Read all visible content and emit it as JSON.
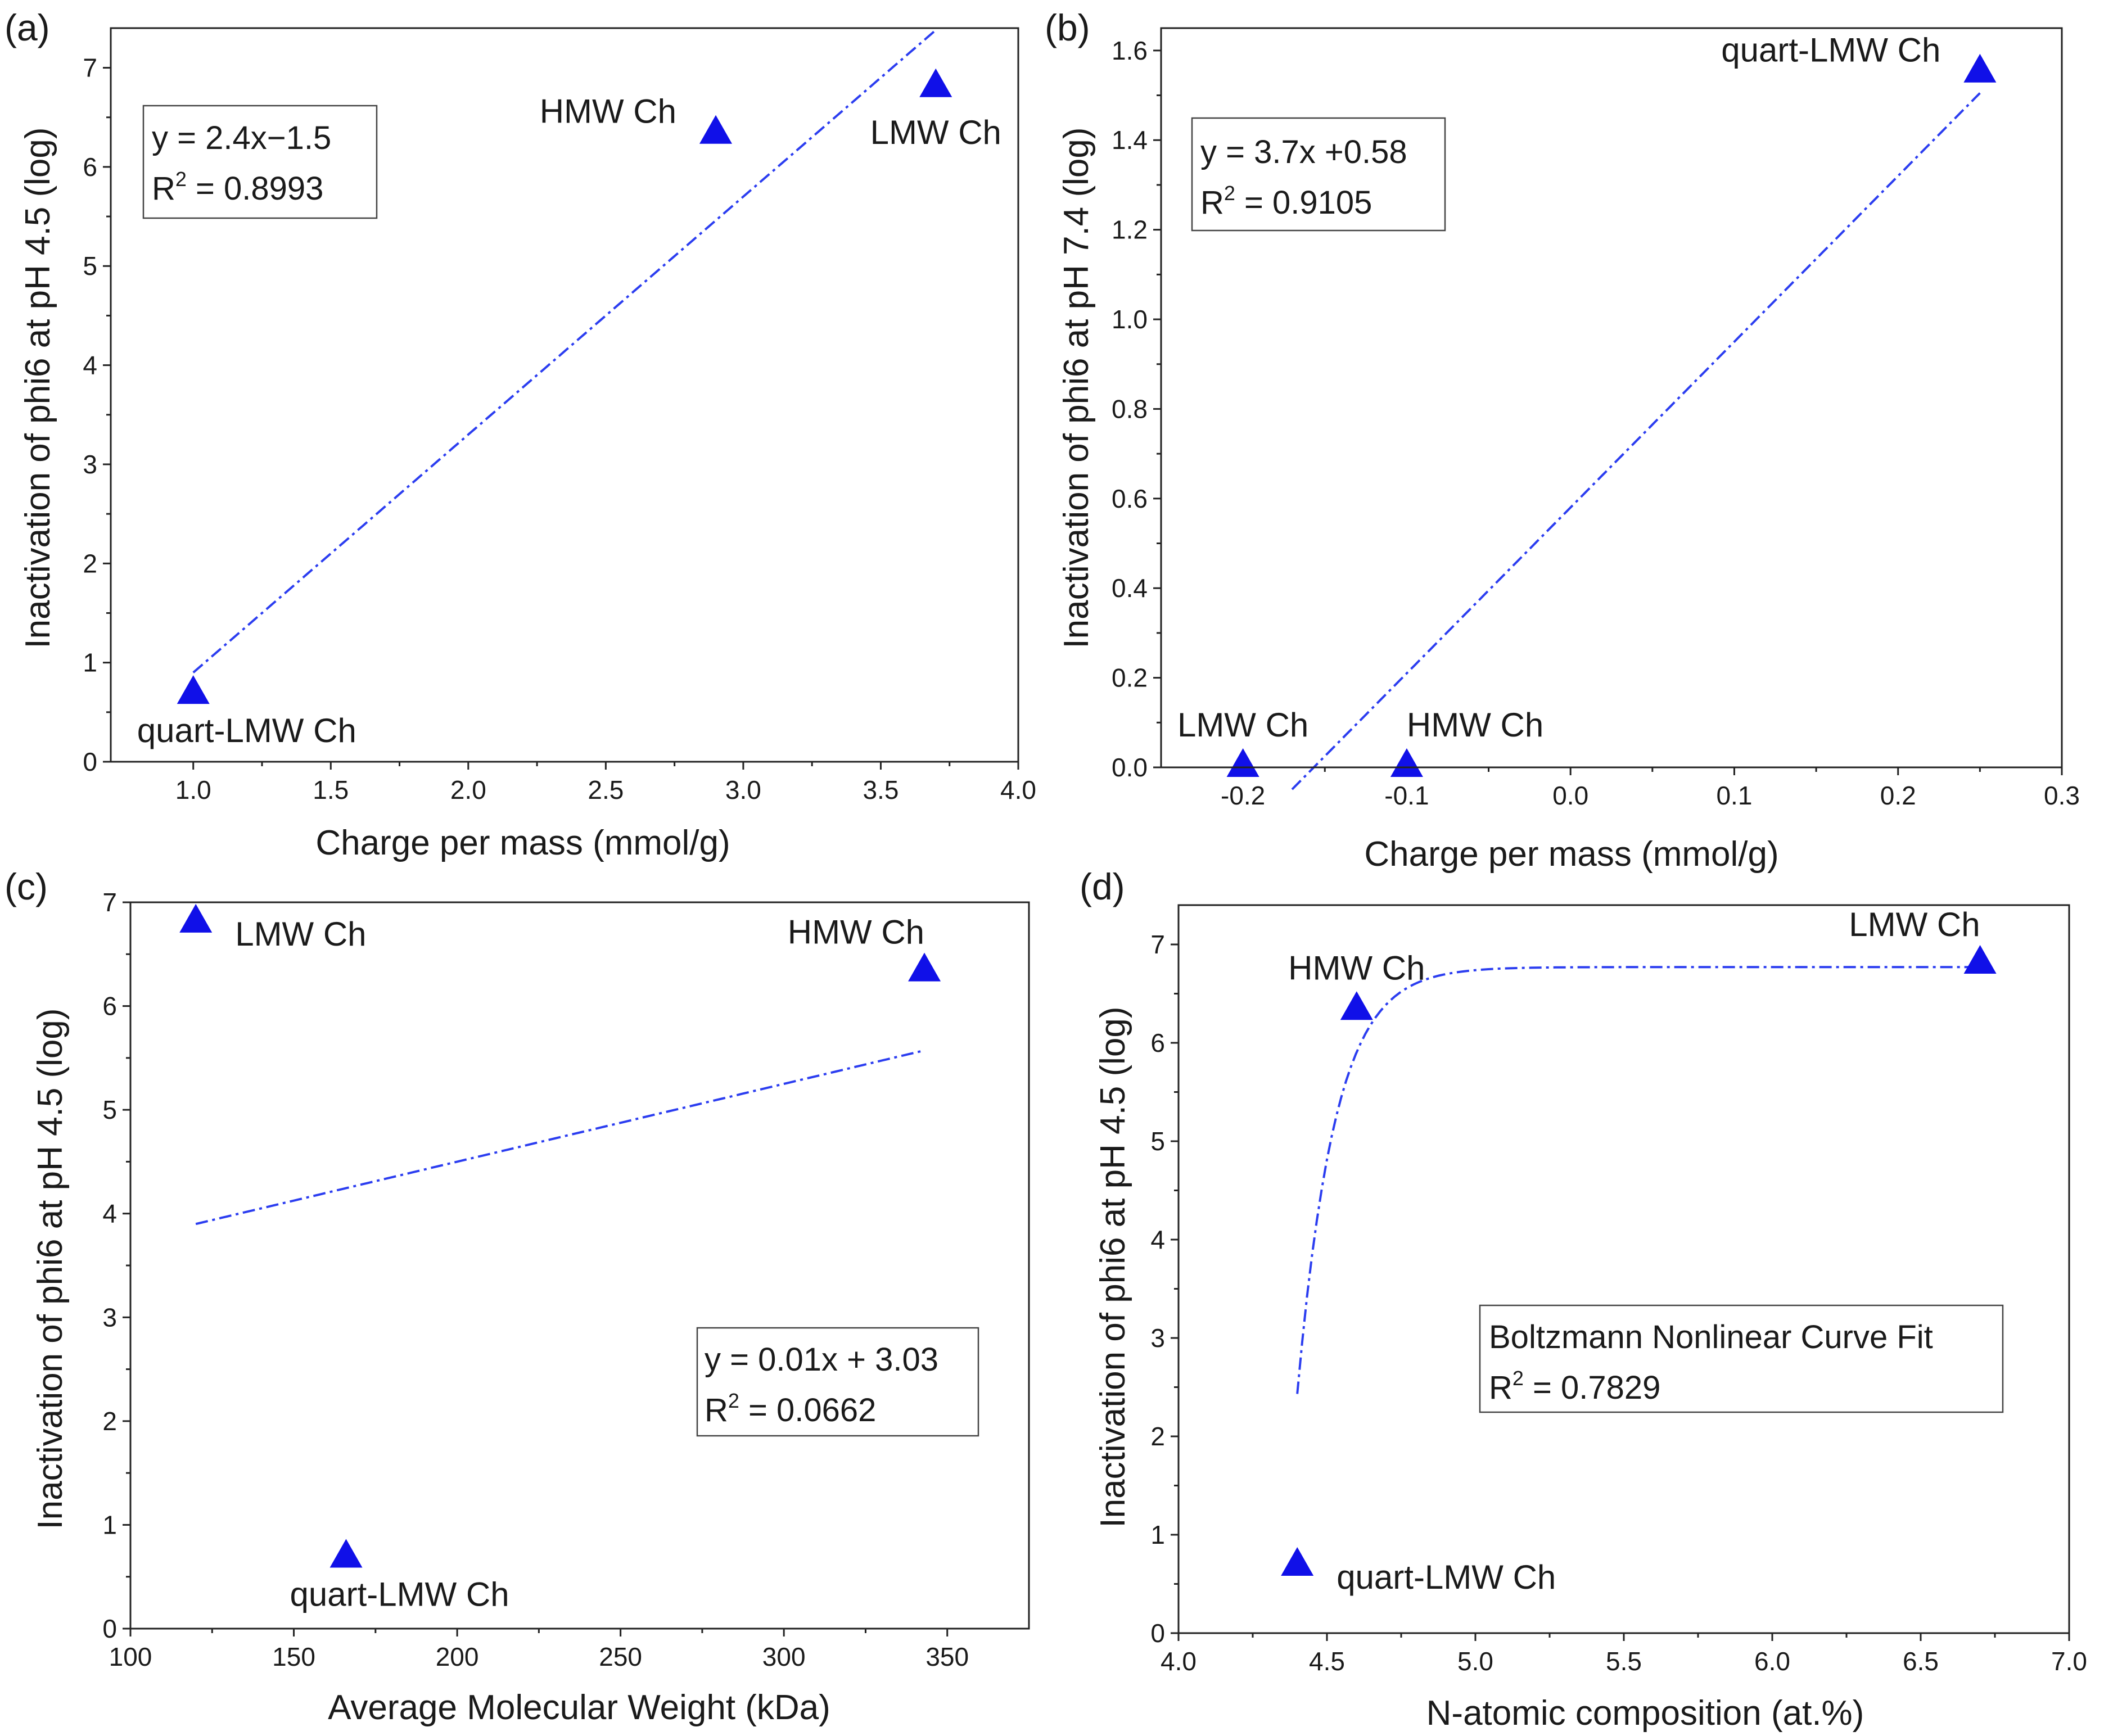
{
  "figure": {
    "colors": {
      "marker": "#1010e8",
      "fit_line": "#2b3df0",
      "axis": "#222222",
      "text": "#1a1a1a"
    }
  },
  "chart_data": [
    {
      "panel": "(a)",
      "type": "scatter",
      "xlabel": "Charge per mass (mmol/g)",
      "ylabel": "Inactivation of phi6 at pH 4.5 (log)",
      "xlim": [
        0.7,
        4.0
      ],
      "ylim": [
        0,
        7.4
      ],
      "xticks": [
        1.0,
        1.5,
        2.0,
        2.5,
        3.0,
        3.5,
        4.0
      ],
      "xtick_labels": [
        "1.0",
        "1.5",
        "2.0",
        "2.5",
        "3.0",
        "3.5",
        "4.0"
      ],
      "yticks": [
        0,
        1,
        2,
        3,
        4,
        5,
        6,
        7
      ],
      "ytick_labels": [
        "0",
        "1",
        "2",
        "3",
        "4",
        "5",
        "6",
        "7"
      ],
      "points": [
        {
          "label": "quart-LMW Ch",
          "x": 1.0,
          "y": 0.68,
          "label_pos": "below-right"
        },
        {
          "label": "HMW Ch",
          "x": 2.9,
          "y": 6.33,
          "label_pos": "left"
        },
        {
          "label": "LMW Ch",
          "x": 3.7,
          "y": 6.8,
          "label_pos": "below"
        }
      ],
      "fit": {
        "kind": "linear",
        "slope": 2.4,
        "intercept": -1.5,
        "x_range": [
          1.0,
          3.7
        ]
      },
      "annotation": {
        "line1": "y = 2.4x−1.5",
        "r2_value": " = 0.8993",
        "position": "top-left"
      }
    },
    {
      "panel": "(b)",
      "type": "scatter",
      "xlabel": "Charge per mass (mmol/g)",
      "ylabel": "Inactivation of phi6 at pH 7.4 (log)",
      "xlim": [
        -0.25,
        0.3
      ],
      "ylim": [
        0,
        1.65
      ],
      "xticks": [
        -0.2,
        -0.1,
        0.0,
        0.1,
        0.2,
        0.3
      ],
      "xtick_labels": [
        "-0.2",
        "-0.1",
        "0.0",
        "0.1",
        "0.2",
        "0.3"
      ],
      "yticks": [
        0.0,
        0.2,
        0.4,
        0.6,
        0.8,
        1.0,
        1.2,
        1.4,
        1.6
      ],
      "ytick_labels": [
        "0.0",
        "0.2",
        "0.4",
        "0.6",
        "0.8",
        "1.0",
        "1.2",
        "1.4",
        "1.6"
      ],
      "points": [
        {
          "label": "LMW Ch",
          "x": -0.2,
          "y": 0.0,
          "label_pos": "above"
        },
        {
          "label": "HMW Ch",
          "x": -0.1,
          "y": 0.0,
          "label_pos": "above-right"
        },
        {
          "label": "quart-LMW Ch",
          "x": 0.25,
          "y": 1.55,
          "label_pos": "left"
        }
      ],
      "fit": {
        "kind": "linear",
        "slope": 3.7,
        "intercept": 0.58,
        "x_range": [
          -0.17,
          0.25
        ],
        "display": "segment"
      },
      "annotation": {
        "line1": "y = 3.7x +0.58",
        "r2_value": " = 0.9105",
        "position": "top-left"
      }
    },
    {
      "panel": "(c)",
      "type": "scatter",
      "xlabel": "Average Molecular Weight (kDa)",
      "ylabel": "Inactivation of phi6 at pH 4.5 (log)",
      "xlim": [
        100,
        375
      ],
      "ylim": [
        0,
        7.0
      ],
      "xticks": [
        100,
        150,
        200,
        250,
        300,
        350
      ],
      "xtick_labels": [
        "100",
        "150",
        "200",
        "250",
        "300",
        "350"
      ],
      "yticks": [
        0,
        1,
        2,
        3,
        4,
        5,
        6,
        7
      ],
      "ytick_labels": [
        "0",
        "1",
        "2",
        "3",
        "4",
        "5",
        "6",
        "7"
      ],
      "points": [
        {
          "label": "LMW Ch",
          "x": 120,
          "y": 6.8,
          "label_pos": "right"
        },
        {
          "label": "HMW Ch",
          "x": 343,
          "y": 6.33,
          "label_pos": "above-left"
        },
        {
          "label": "quart-LMW Ch",
          "x": 166,
          "y": 0.68,
          "label_pos": "below-right"
        }
      ],
      "fit": {
        "kind": "linear",
        "slope": 0.0075,
        "intercept": 3.0,
        "x_range": [
          120,
          343
        ],
        "display": "segment"
      },
      "annotation": {
        "line1": "y = 0.01x + 3.03",
        "r2_value": " = 0.0662",
        "position": "lower-right"
      }
    },
    {
      "panel": "(d)",
      "type": "scatter",
      "xlabel": "N-atomic composition (at.%)",
      "ylabel": "Inactivation of phi6 at pH 4.5 (log)",
      "xlim": [
        4.0,
        7.0
      ],
      "ylim": [
        0,
        7.4
      ],
      "xticks": [
        4.0,
        4.5,
        5.0,
        5.5,
        6.0,
        6.5,
        7.0
      ],
      "xtick_labels": [
        "4.0",
        "4.5",
        "5.0",
        "5.5",
        "6.0",
        "6.5",
        "7.0"
      ],
      "yticks": [
        0,
        1,
        2,
        3,
        4,
        5,
        6,
        7
      ],
      "ytick_labels": [
        "0",
        "1",
        "2",
        "3",
        "4",
        "5",
        "6",
        "7"
      ],
      "points": [
        {
          "label": "HMW Ch",
          "x": 4.6,
          "y": 6.33,
          "label_pos": "above"
        },
        {
          "label": "LMW Ch",
          "x": 6.7,
          "y": 6.8,
          "label_pos": "above-left"
        },
        {
          "label": "quart-LMW Ch",
          "x": 4.4,
          "y": 0.68,
          "label_pos": "right"
        }
      ],
      "fit": {
        "kind": "boltzmann",
        "A1": -60,
        "A2": 6.77,
        "x0": 4.08,
        "dx": 0.12,
        "x_range": [
          4.4,
          6.7
        ]
      },
      "annotation": {
        "line1": "Boltzmann Nonlinear Curve Fit",
        "r2_value": " = 0.7829",
        "position": "lower-right"
      }
    }
  ]
}
